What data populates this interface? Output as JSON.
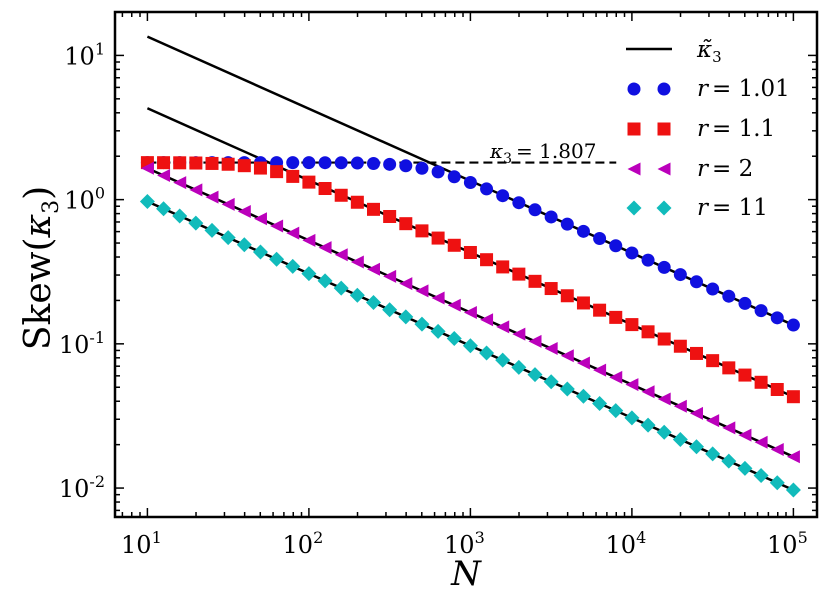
{
  "chart_data": {
    "type": "scatter",
    "title": "",
    "xlabel": "N",
    "ylabel_main": "Skew(",
    "ylabel_var": "κ",
    "ylabel_sub": "3",
    "ylabel_close": ")",
    "xscale": "log",
    "yscale": "log",
    "xlim": [
      6.3,
      140000
    ],
    "ylim": [
      0.0063,
      20
    ],
    "x_ticks": [
      {
        "value": 10,
        "base": "10",
        "exp": "1"
      },
      {
        "value": 100,
        "base": "10",
        "exp": "2"
      },
      {
        "value": 1000,
        "base": "10",
        "exp": "3"
      },
      {
        "value": 10000,
        "base": "10",
        "exp": "4"
      },
      {
        "value": 100000,
        "base": "10",
        "exp": "5"
      }
    ],
    "y_ticks": [
      {
        "value": 10,
        "base": "10",
        "exp": "1"
      },
      {
        "value": 1,
        "base": "10",
        "exp": "0"
      },
      {
        "value": 0.1,
        "base": "10",
        "exp": "-1"
      },
      {
        "value": 0.01,
        "base": "10",
        "exp": "-2"
      }
    ],
    "n_points_per_series": 41,
    "x_range": [
      10,
      100000
    ],
    "series": [
      {
        "name": "r = 1.01",
        "label_r": "r",
        "label_val": "= 1.01",
        "marker": "circle",
        "color": "#1010e0",
        "plateau": 1.807,
        "asym_at_1e5": 0.135
      },
      {
        "name": "r = 1.1",
        "label_r": "r",
        "label_val": "= 1.1",
        "marker": "square",
        "color": "#ee1111",
        "plateau": 1.807,
        "asym_at_1e5": 0.043
      },
      {
        "name": "r = 2",
        "label_r": "r",
        "label_val": "= 2",
        "marker": "triangle-left",
        "color": "#bb00bb",
        "plateau": null,
        "asym_at_1e5": 0.0165
      },
      {
        "name": "r = 11",
        "label_r": "r",
        "label_val": "= 11",
        "marker": "diamond",
        "color": "#11bbbb",
        "plateau": null,
        "asym_at_1e5": 0.0097
      }
    ],
    "fit_lines": [
      {
        "label": "κ̃3",
        "x_start": 10,
        "y_start": 13.5,
        "x_end": 100000,
        "y_end": 0.135
      },
      {
        "x_start": 10,
        "y_start": 4.3,
        "x_end": 100000,
        "y_end": 0.043
      },
      {
        "x_start": 10,
        "y_start": 1.65,
        "x_end": 100000,
        "y_end": 0.0165
      },
      {
        "x_start": 10,
        "y_start": 0.97,
        "x_end": 100000,
        "y_end": 0.0097
      }
    ],
    "reference_line": {
      "value": 1.807,
      "x_start": 10,
      "x_end": 8000,
      "style": "dashed",
      "label_var": "κ",
      "label_sub": "3",
      "label_text": "= 1.807"
    },
    "legend": {
      "placement": "top-right",
      "line_entry": {
        "var": "κ̃",
        "sub": "3"
      }
    }
  }
}
